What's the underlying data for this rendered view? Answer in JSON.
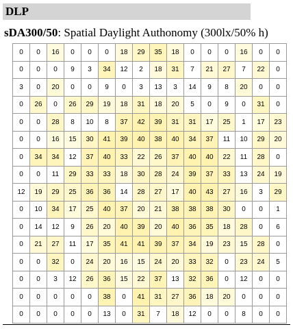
{
  "header": {
    "title": "DLP"
  },
  "subtitle": {
    "bold": "sDA300/50",
    "rest": ": Spatial Daylight Authonomy (300lx/50% h)"
  },
  "table": {
    "rows": [
      [
        0,
        0,
        16,
        0,
        0,
        0,
        18,
        29,
        35,
        18,
        0,
        0,
        0,
        16,
        0,
        0
      ],
      [
        0,
        0,
        0,
        9,
        3,
        34,
        12,
        2,
        18,
        31,
        7,
        21,
        27,
        7,
        22,
        0
      ],
      [
        3,
        0,
        20,
        0,
        0,
        9,
        0,
        3,
        13,
        3,
        14,
        9,
        8,
        20,
        0,
        0
      ],
      [
        0,
        26,
        0,
        26,
        29,
        19,
        18,
        31,
        18,
        20,
        5,
        0,
        9,
        0,
        31,
        0
      ],
      [
        0,
        0,
        28,
        8,
        10,
        8,
        37,
        42,
        39,
        31,
        31,
        17,
        25,
        1,
        17,
        23
      ],
      [
        0,
        0,
        16,
        15,
        30,
        41,
        39,
        40,
        38,
        40,
        34,
        37,
        11,
        10,
        29,
        20
      ],
      [
        0,
        34,
        34,
        12,
        37,
        40,
        33,
        22,
        26,
        37,
        40,
        40,
        22,
        11,
        28,
        0
      ],
      [
        0,
        0,
        11,
        29,
        33,
        33,
        18,
        30,
        28,
        24,
        39,
        37,
        33,
        13,
        24,
        19
      ],
      [
        12,
        19,
        29,
        25,
        36,
        36,
        14,
        28,
        27,
        17,
        40,
        43,
        27,
        16,
        3,
        29
      ],
      [
        0,
        10,
        34,
        17,
        25,
        40,
        37,
        20,
        21,
        38,
        38,
        38,
        30,
        0,
        0,
        1
      ],
      [
        0,
        14,
        12,
        9,
        26,
        20,
        40,
        39,
        20,
        40,
        36,
        35,
        18,
        28,
        0,
        6
      ],
      [
        0,
        21,
        27,
        11,
        17,
        35,
        41,
        41,
        39,
        37,
        34,
        19,
        23,
        15,
        28,
        0
      ],
      [
        0,
        0,
        32,
        0,
        24,
        20,
        16,
        15,
        24,
        20,
        33,
        32,
        0,
        23,
        24,
        5
      ],
      [
        0,
        0,
        3,
        12,
        26,
        36,
        15,
        22,
        37,
        13,
        32,
        36,
        0,
        12,
        0,
        0
      ],
      [
        0,
        0,
        0,
        0,
        0,
        38,
        0,
        41,
        31,
        27,
        36,
        18,
        20,
        0,
        0,
        0
      ],
      [
        0,
        0,
        0,
        0,
        0,
        13,
        0,
        31,
        7,
        18,
        12,
        0,
        0,
        8,
        0,
        0
      ]
    ]
  }
}
